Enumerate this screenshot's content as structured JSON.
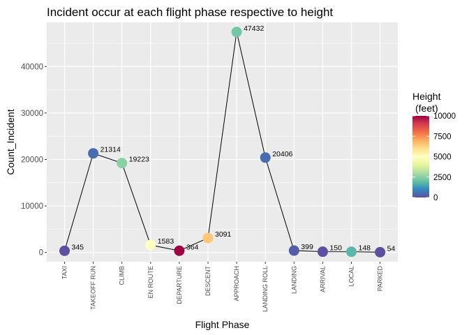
{
  "chart_data": {
    "type": "line",
    "title": "Incident occur at each flight phase respective to height",
    "xlabel": "Flight Phase",
    "ylabel": "Count_Incident",
    "categories": [
      "TAXI",
      "TAKEOFF RUN",
      "CLIMB",
      "EN ROUTE",
      "DEPARTURE",
      "DESCENT",
      "APPROACH",
      "LANDING ROLL",
      "LANDING",
      "ARRIVAL",
      "LOCAL",
      "PARKED"
    ],
    "series": [
      {
        "values": [
          345,
          21314,
          19223,
          1583,
          364,
          3091,
          47432,
          20406,
          399,
          150,
          148,
          54
        ],
        "point_labels": [
          "345",
          "21314",
          "19223",
          "1583",
          "364",
          "3091",
          "47432",
          "20406",
          "399",
          "150",
          "148",
          "54"
        ],
        "height_feet": [
          0,
          500,
          2500,
          5000,
          10000,
          6500,
          2200,
          500,
          250,
          0,
          1800,
          0
        ]
      }
    ],
    "ylim": [
      -2000,
      49500
    ],
    "yticks": [
      0,
      10000,
      20000,
      30000,
      40000
    ],
    "ytick_labels": [
      "0",
      "10000",
      "20000",
      "30000",
      "40000"
    ],
    "grid": true,
    "panel_background": "#ebebeb",
    "line_color": "#000000",
    "legend": {
      "title_line1": "Height",
      "title_line2": "(feet)",
      "placement": "right",
      "range": [
        0,
        10000
      ],
      "ticks": [
        0,
        2500,
        5000,
        7500,
        10000
      ],
      "tick_labels": [
        "0",
        "2500",
        "5000",
        "7500",
        "10000"
      ],
      "palette": [
        "#5e4fa2",
        "#3288bd",
        "#66c2a5",
        "#abdda4",
        "#e6f598",
        "#ffffbf",
        "#fee08b",
        "#fdae61",
        "#f46d43",
        "#d53e4f",
        "#9e0142"
      ]
    }
  }
}
